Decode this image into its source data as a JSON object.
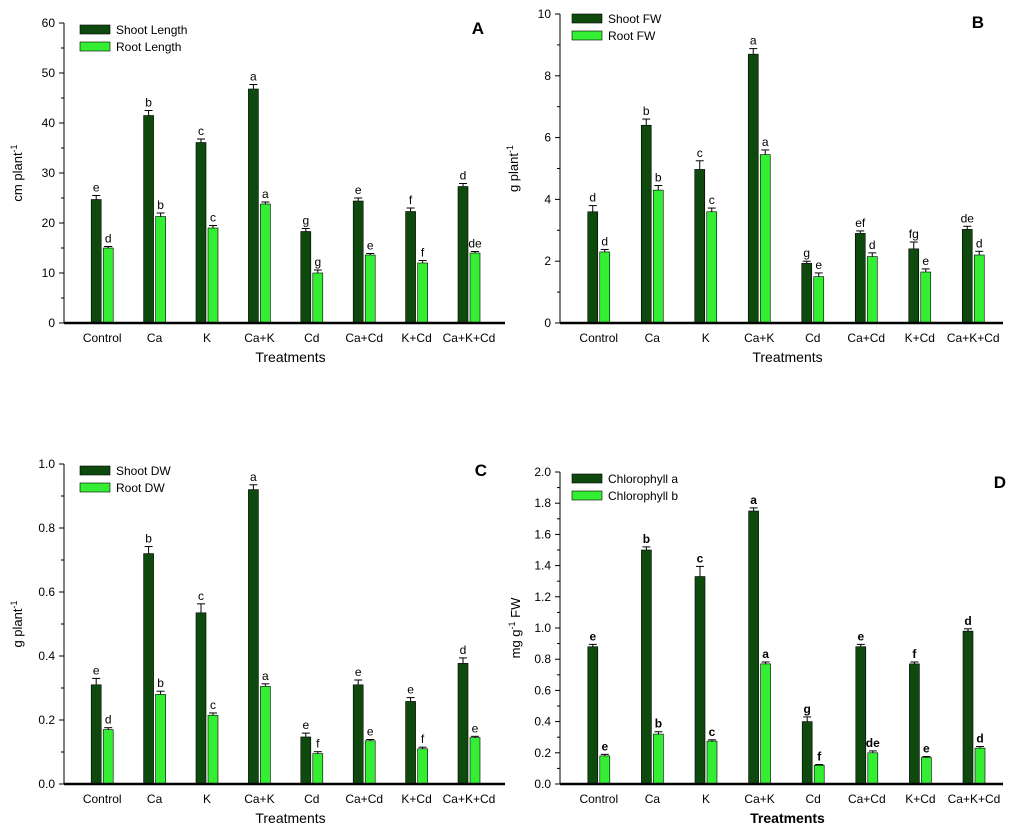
{
  "colors": {
    "dark": "#0e4a0e",
    "light": "#33ee33",
    "axis": "#000000"
  },
  "chart_data": [
    {
      "type": "bar",
      "panel": "A",
      "xlabel": "Treatments",
      "ylabel": "cm plant",
      "ylabel_sup": "-1",
      "ylim": [
        0,
        60
      ],
      "yticks": [
        "0",
        "10",
        "20",
        "30",
        "40",
        "50",
        "60"
      ],
      "categories": [
        "Control",
        "Ca",
        "K",
        "Ca+K",
        "Cd",
        "Ca+Cd",
        "K+Cd",
        "Ca+K+Cd"
      ],
      "legend_position": "top-left",
      "label_bold": false,
      "series": [
        {
          "name": "Shoot Length",
          "values": [
            24.7,
            41.5,
            36.1,
            46.8,
            18.3,
            24.4,
            22.3,
            27.3
          ],
          "errors": [
            0.8,
            1.0,
            0.7,
            0.9,
            0.6,
            0.6,
            0.7,
            0.6
          ],
          "labels": [
            "e",
            "b",
            "c",
            "a",
            "g",
            "e",
            "f",
            "d"
          ]
        },
        {
          "name": "Root Length",
          "values": [
            15.0,
            21.3,
            19.0,
            23.8,
            10.0,
            13.6,
            12.0,
            14.0
          ],
          "errors": [
            0.3,
            0.7,
            0.5,
            0.4,
            0.6,
            0.3,
            0.5,
            0.3
          ],
          "labels": [
            "d",
            "b",
            "c",
            "a",
            "g",
            "e",
            "f",
            "de"
          ]
        }
      ]
    },
    {
      "type": "bar",
      "panel": "B",
      "xlabel": "Treatments",
      "ylabel": "g plant",
      "ylabel_sup": "-1",
      "ylim": [
        0,
        10
      ],
      "yticks": [
        "0",
        "2",
        "4",
        "6",
        "8",
        "10"
      ],
      "categories": [
        "Control",
        "Ca",
        "K",
        "Ca+K",
        "Cd",
        "Ca+Cd",
        "K+Cd",
        "Ca+K+Cd"
      ],
      "legend_position": "top-left",
      "label_bold": false,
      "series": [
        {
          "name": "Shoot FW",
          "values": [
            3.6,
            6.4,
            4.97,
            8.7,
            1.93,
            2.9,
            2.4,
            3.03
          ],
          "errors": [
            0.2,
            0.2,
            0.28,
            0.18,
            0.07,
            0.08,
            0.22,
            0.1
          ],
          "labels": [
            "d",
            "b",
            "c",
            "a",
            "g",
            "ef",
            "fg",
            "de"
          ]
        },
        {
          "name": "Root FW",
          "values": [
            2.3,
            4.3,
            3.6,
            5.45,
            1.5,
            2.15,
            1.65,
            2.2
          ],
          "errors": [
            0.08,
            0.15,
            0.12,
            0.15,
            0.12,
            0.12,
            0.1,
            0.12
          ],
          "labels": [
            "d",
            "b",
            "c",
            "a",
            "e",
            "d",
            "e",
            "d"
          ]
        }
      ]
    },
    {
      "type": "bar",
      "panel": "C",
      "xlabel": "Treatments",
      "ylabel": "g plant",
      "ylabel_sup": "-1",
      "ylim": [
        0,
        1.0
      ],
      "yticks": [
        "0.0",
        "0.2",
        "0.4",
        "0.6",
        "0.8",
        "1.0"
      ],
      "categories": [
        "Control",
        "Ca",
        "K",
        "Ca+K",
        "Cd",
        "Ca+Cd",
        "K+Cd",
        "Ca+K+Cd"
      ],
      "legend_position": "top-left",
      "label_bold": false,
      "series": [
        {
          "name": "Shoot DW",
          "values": [
            0.31,
            0.72,
            0.535,
            0.92,
            0.147,
            0.31,
            0.258,
            0.377
          ],
          "errors": [
            0.02,
            0.022,
            0.028,
            0.015,
            0.012,
            0.015,
            0.012,
            0.017
          ],
          "labels": [
            "e",
            "b",
            "c",
            "a",
            "e",
            "e",
            "e",
            "d"
          ]
        },
        {
          "name": "Root DW",
          "values": [
            0.17,
            0.28,
            0.215,
            0.305,
            0.095,
            0.135,
            0.11,
            0.145
          ],
          "errors": [
            0.006,
            0.01,
            0.007,
            0.008,
            0.006,
            0.004,
            0.005,
            0.004
          ],
          "labels": [
            "d",
            "b",
            "c",
            "a",
            "f",
            "e",
            "f",
            "e"
          ]
        }
      ]
    },
    {
      "type": "bar",
      "panel": "D",
      "xlabel": "Treatments",
      "ylabel": "mg g",
      "ylabel_sup": "-1",
      "ylabel_suffix": " FW",
      "ylim": [
        0,
        2.0
      ],
      "yticks": [
        "0.0",
        "0.2",
        "0.4",
        "0.6",
        "0.8",
        "1.0",
        "1.2",
        "1.4",
        "1.6",
        "1.8",
        "2.0"
      ],
      "categories": [
        "Control",
        "Ca",
        "K",
        "Ca+K",
        "Cd",
        "Ca+Cd",
        "K+Cd",
        "Ca+K+Cd"
      ],
      "legend_position": "top-left",
      "label_bold": true,
      "series": [
        {
          "name": "Chlorophyll a",
          "values": [
            0.88,
            1.5,
            1.33,
            1.75,
            0.4,
            0.88,
            0.77,
            0.98
          ],
          "errors": [
            0.015,
            0.02,
            0.065,
            0.02,
            0.03,
            0.015,
            0.012,
            0.015
          ],
          "labels": [
            "e",
            "b",
            "c",
            "a",
            "g",
            "e",
            "f",
            "d"
          ]
        },
        {
          "name": "Chlorophyll b",
          "values": [
            0.18,
            0.32,
            0.275,
            0.77,
            0.12,
            0.2,
            0.17,
            0.23
          ],
          "errors": [
            0.01,
            0.015,
            0.008,
            0.012,
            0.005,
            0.012,
            0.006,
            0.01
          ],
          "labels": [
            "e",
            "b",
            "c",
            "a",
            "f",
            "de",
            "e",
            "d"
          ]
        }
      ]
    }
  ]
}
